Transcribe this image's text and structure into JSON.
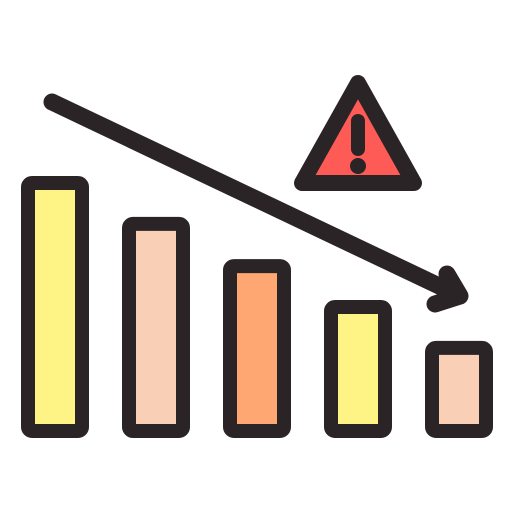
{
  "icon": {
    "name": "declining-bar-chart-warning-icon",
    "bars": [
      {
        "name": "bar-1",
        "level": 1.0,
        "fill": "#fef486"
      },
      {
        "name": "bar-2",
        "level": 0.835,
        "fill": "#f9cfb5"
      },
      {
        "name": "bar-3",
        "level": 0.665,
        "fill": "#fea772"
      },
      {
        "name": "bar-4",
        "level": 0.5,
        "fill": "#fef486"
      },
      {
        "name": "bar-5",
        "level": 0.335,
        "fill": "#f9cfb5"
      }
    ],
    "trend": "down",
    "warning_symbol": "exclamation-mark",
    "colors": {
      "outline": "#2b2426",
      "warning_fill": "#fe5b57",
      "background": "#ffffff"
    }
  }
}
